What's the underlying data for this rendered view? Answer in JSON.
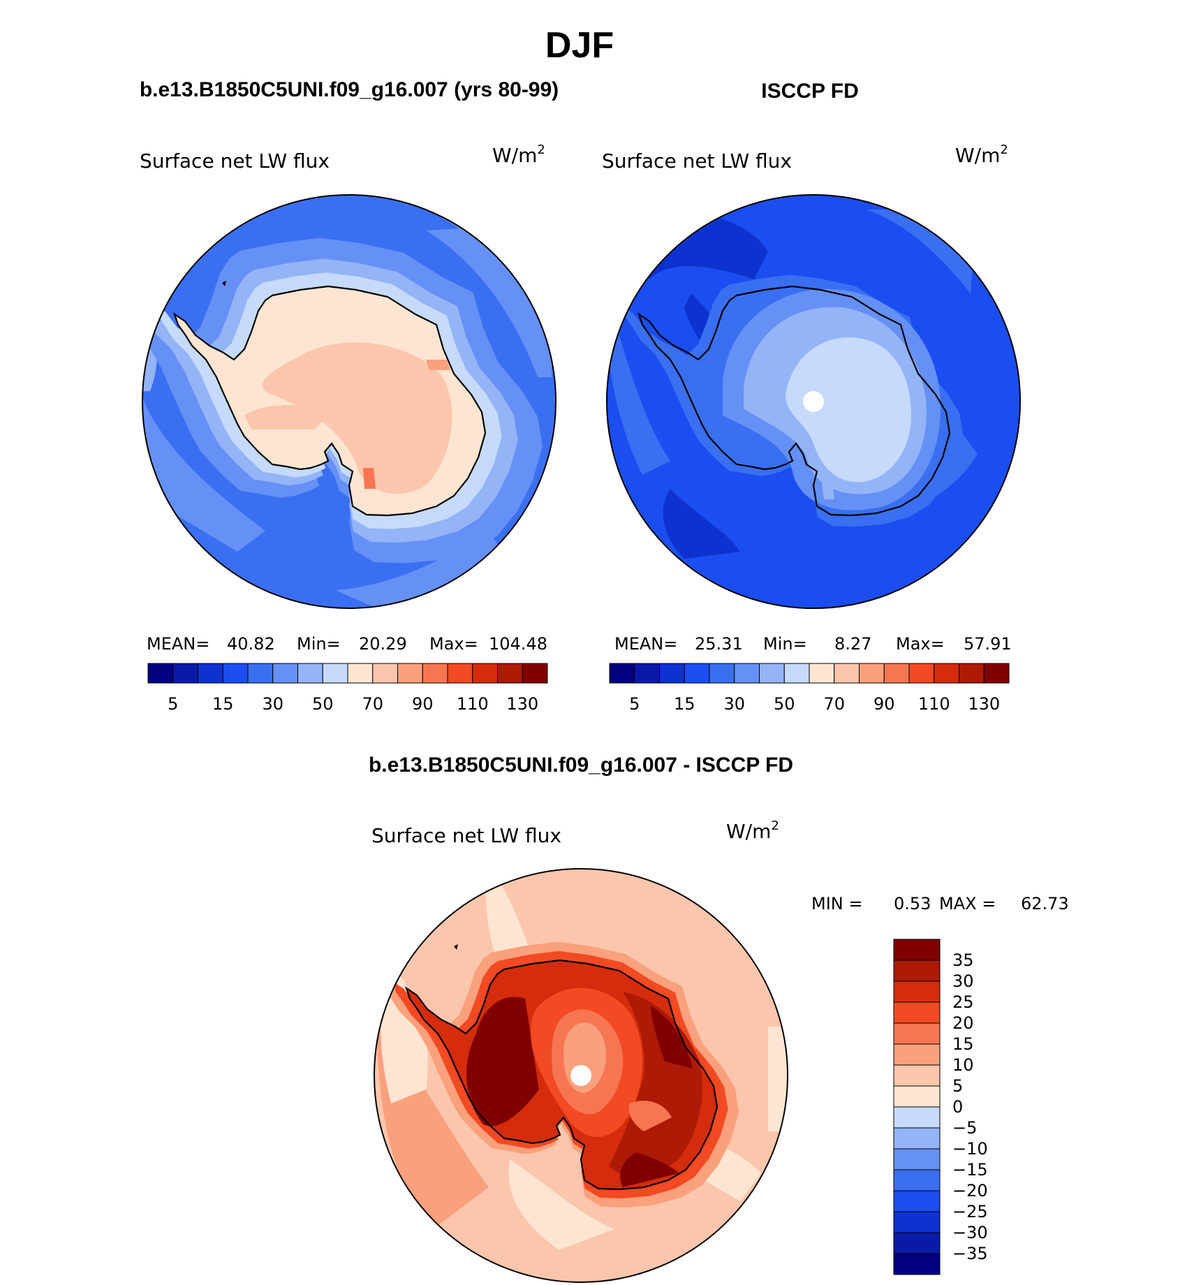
{
  "figure": {
    "title": "DJF"
  },
  "panels": [
    {
      "case_title": "b.e13.B1850C5UNI.f09_g16.007 (yrs 80-99)",
      "variable": "Surface net LW flux",
      "units": "W/m",
      "units_sup": "2",
      "stats": {
        "mean_label": "MEAN=",
        "mean": "40.82",
        "min_label": "Min=",
        "min": "20.29",
        "max_label": "Max=",
        "max": "104.48"
      },
      "map_type": "model"
    },
    {
      "case_title": "ISCCP FD",
      "variable": "Surface net LW flux",
      "units": "W/m",
      "units_sup": "2",
      "stats": {
        "mean_label": "MEAN=",
        "mean": "25.31",
        "min_label": "Min=",
        "min": "8.27",
        "max_label": "Max=",
        "max": "57.91"
      },
      "map_type": "obs"
    }
  ],
  "abs_colorbar": {
    "colors": [
      "#000080",
      "#0a1aa8",
      "#0d32d0",
      "#1a4ef0",
      "#3a6ff2",
      "#6590f5",
      "#94b4f8",
      "#c6dafc",
      "#fde5d2",
      "#fcc6ac",
      "#f9a07c",
      "#f77652",
      "#f24a22",
      "#d42c0c",
      "#ad1a06",
      "#800000"
    ],
    "tick_labels": [
      "5",
      "15",
      "30",
      "50",
      "70",
      "90",
      "110",
      "130"
    ]
  },
  "diff": {
    "title": "b.e13.B1850C5UNI.f09_g16.007 - ISCCP FD",
    "variable": "Surface net LW flux",
    "units": "W/m",
    "units_sup": "2",
    "minmax_label": "MIN =",
    "min": "0.53",
    "max_label": "MAX =",
    "max": "62.73",
    "colorbar": {
      "colors_top_to_bottom": [
        "#800000",
        "#ad1a06",
        "#d42c0c",
        "#f24a22",
        "#f77652",
        "#f9a07c",
        "#fcc6ac",
        "#fde5d2",
        "#c6dafc",
        "#94b4f8",
        "#6590f5",
        "#3a6ff2",
        "#1a4ef0",
        "#0d32d0",
        "#0a1aa8",
        "#000080"
      ],
      "tick_labels": [
        "35",
        "30",
        "25",
        "20",
        "15",
        "10",
        "5",
        "0",
        "−5",
        "−10",
        "−15",
        "−20",
        "−25",
        "−30",
        "−35"
      ]
    }
  }
}
